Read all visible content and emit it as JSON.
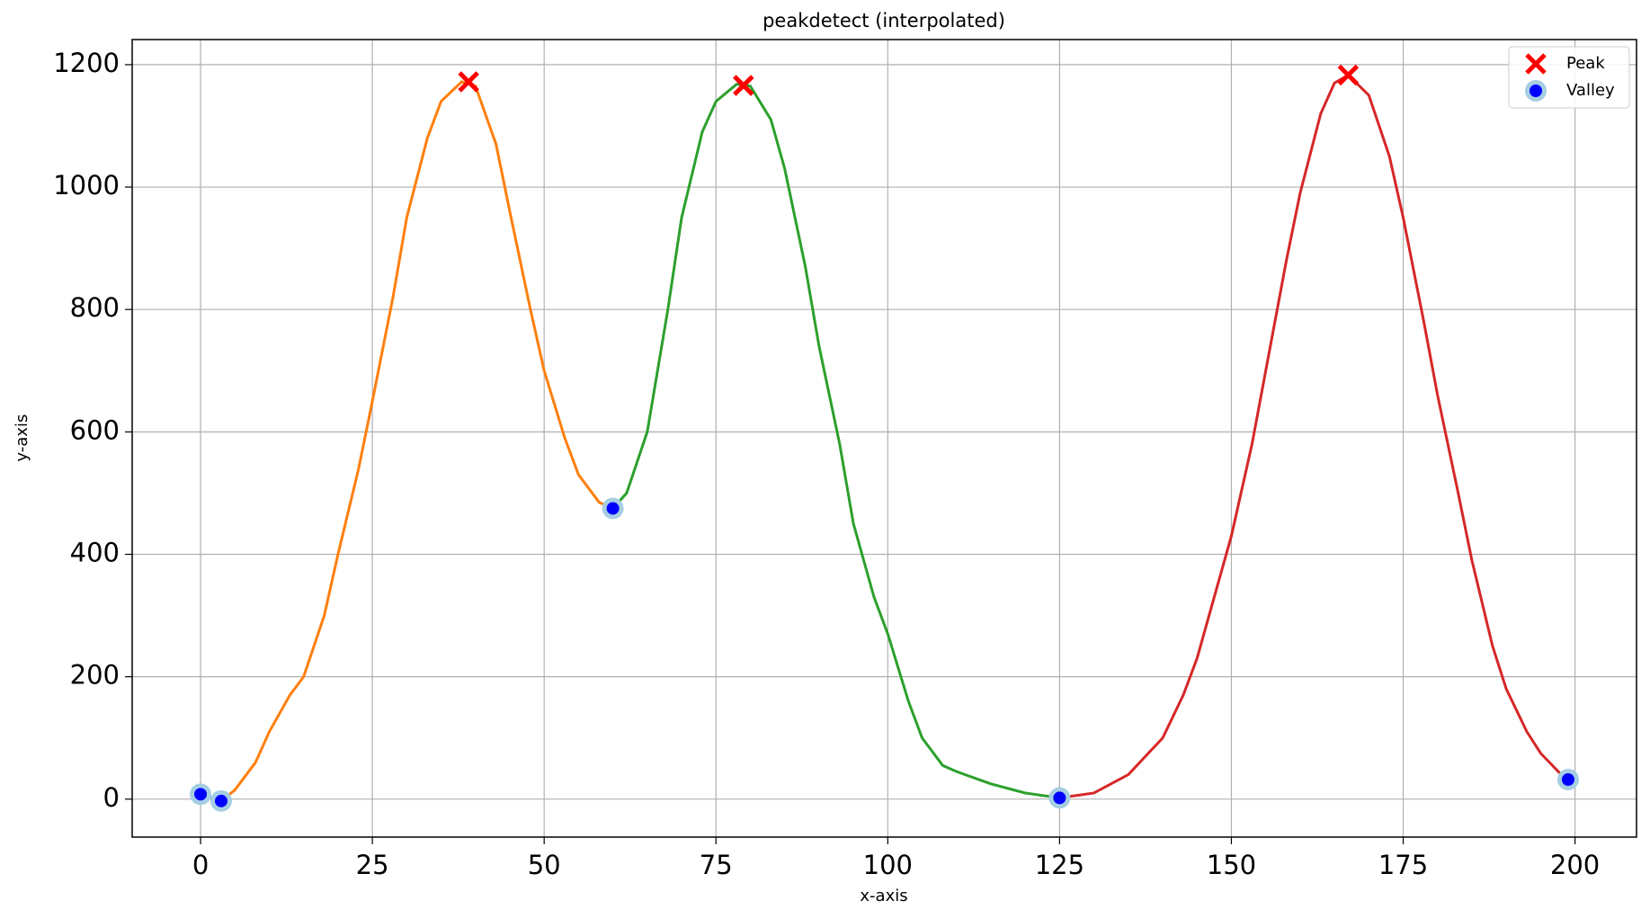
{
  "chart_data": {
    "type": "line",
    "title": "peakdetect (interpolated)",
    "x_label": "x-axis",
    "y_label": "y-axis",
    "xlim": [
      -9.95,
      208.95
    ],
    "ylim": [
      -62,
      1241
    ],
    "xticks": [
      0,
      25,
      50,
      75,
      100,
      125,
      150,
      175,
      200
    ],
    "yticks": [
      0,
      200,
      400,
      600,
      800,
      1000,
      1200
    ],
    "grid": true,
    "legend": "upper right",
    "series": [
      {
        "color": "#1f77b4",
        "x": [
          0,
          3
        ],
        "values": [
          8,
          -3
        ]
      },
      {
        "color": "#ff7f0e",
        "x": [
          3,
          5,
          8,
          10,
          13,
          15,
          18,
          20,
          23,
          25,
          28,
          30,
          33,
          35,
          38,
          40,
          43,
          45,
          48,
          50,
          53,
          55,
          58,
          60
        ],
        "values": [
          -3,
          15,
          60,
          110,
          170,
          200,
          300,
          400,
          540,
          650,
          820,
          950,
          1080,
          1140,
          1172,
          1165,
          1070,
          960,
          800,
          700,
          590,
          530,
          485,
          475
        ]
      },
      {
        "color": "#2ca02c",
        "x": [
          60,
          62,
          65,
          68,
          70,
          73,
          75,
          78,
          80,
          83,
          85,
          88,
          90,
          93,
          95,
          98,
          100,
          103,
          105,
          108,
          110,
          115,
          120,
          125
        ],
        "values": [
          475,
          500,
          600,
          800,
          950,
          1090,
          1140,
          1168,
          1165,
          1110,
          1030,
          870,
          740,
          580,
          450,
          330,
          270,
          160,
          100,
          55,
          45,
          25,
          10,
          2
        ]
      },
      {
        "color": "#d62728",
        "x": [
          125,
          130,
          135,
          140,
          143,
          145,
          148,
          150,
          153,
          155,
          158,
          160,
          163,
          165,
          167,
          170,
          173,
          175,
          178,
          180,
          183,
          185,
          188,
          190,
          193,
          195,
          198,
          199
        ],
        "values": [
          2,
          10,
          40,
          100,
          170,
          230,
          350,
          430,
          580,
          700,
          880,
          990,
          1120,
          1170,
          1183,
          1150,
          1050,
          950,
          780,
          660,
          500,
          390,
          250,
          180,
          110,
          75,
          40,
          32
        ]
      }
    ],
    "markers": [
      {
        "name": "Peak",
        "color": "#ff0000",
        "marker": "x",
        "x": [
          39,
          79,
          167
        ],
        "values": [
          1172,
          1166,
          1183
        ]
      },
      {
        "name": "Valley",
        "color": "#0000ff",
        "halo": "#a6cee3",
        "marker": "o",
        "x": [
          0,
          3,
          60,
          125,
          199
        ],
        "values": [
          8,
          -3,
          475,
          2,
          32
        ]
      }
    ]
  }
}
